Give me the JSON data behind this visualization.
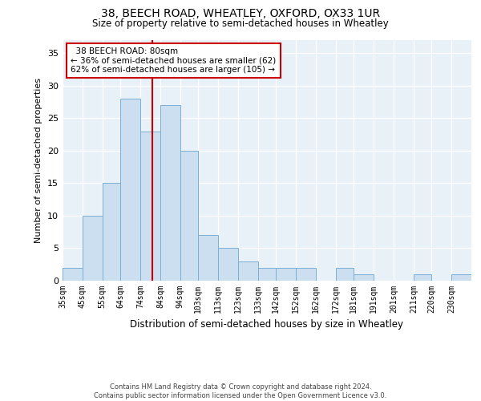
{
  "title1": "38, BEECH ROAD, WHEATLEY, OXFORD, OX33 1UR",
  "title2": "Size of property relative to semi-detached houses in Wheatley",
  "xlabel": "Distribution of semi-detached houses by size in Wheatley",
  "ylabel": "Number of semi-detached properties",
  "annotation_line1": "  38 BEECH ROAD: 80sqm",
  "annotation_line2": "← 36% of semi-detached houses are smaller (62)",
  "annotation_line3": "62% of semi-detached houses are larger (105) →",
  "footer1": "Contains HM Land Registry data © Crown copyright and database right 2024.",
  "footer2": "Contains public sector information licensed under the Open Government Licence v3.0.",
  "bar_color": "#ccdff0",
  "bar_edge_color": "#7aafd4",
  "background_color": "#e8f0f8",
  "grid_color": "#ffffff",
  "vline_value": 80,
  "vline_color": "#cc0000",
  "categories": [
    "35sqm",
    "45sqm",
    "55sqm",
    "64sqm",
    "74sqm",
    "84sqm",
    "94sqm",
    "103sqm",
    "113sqm",
    "123sqm",
    "133sqm",
    "142sqm",
    "152sqm",
    "162sqm",
    "172sqm",
    "181sqm",
    "191sqm",
    "201sqm",
    "211sqm",
    "220sqm",
    "230sqm"
  ],
  "bin_edges": [
    35,
    45,
    55,
    64,
    74,
    84,
    94,
    103,
    113,
    123,
    133,
    142,
    152,
    162,
    172,
    181,
    191,
    201,
    211,
    220,
    230,
    240
  ],
  "values": [
    2,
    10,
    15,
    28,
    23,
    27,
    20,
    7,
    5,
    3,
    2,
    2,
    2,
    0,
    2,
    1,
    0,
    0,
    1,
    0,
    1
  ],
  "ylim": [
    0,
    37
  ],
  "yticks": [
    0,
    5,
    10,
    15,
    20,
    25,
    30,
    35
  ]
}
